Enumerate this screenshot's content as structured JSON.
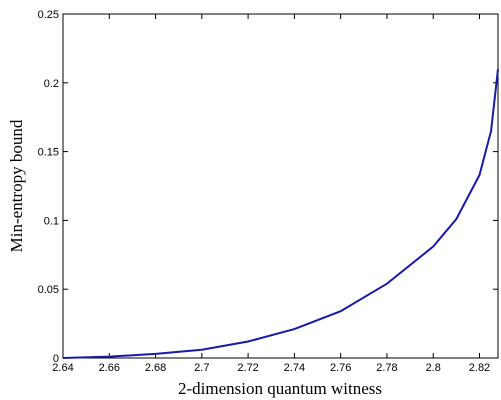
{
  "chart_data": {
    "type": "line",
    "title": "",
    "xlabel": "2-dimension quantum witness",
    "ylabel": "Min-entropy bound",
    "xlim": [
      2.64,
      2.828
    ],
    "ylim": [
      0,
      0.25
    ],
    "xticks": [
      "2.64",
      "2.66",
      "2.68",
      "2.7",
      "2.72",
      "2.74",
      "2.76",
      "2.78",
      "2.8",
      "2.82"
    ],
    "yticks": [
      "0",
      "0.05",
      "0.1",
      "0.15",
      "0.2",
      "0.25"
    ],
    "grid": false,
    "legend": "none",
    "series": [
      {
        "color": "#1a1aa6",
        "x": [
          2.64,
          2.66,
          2.68,
          2.7,
          2.72,
          2.74,
          2.76,
          2.78,
          2.8,
          2.81,
          2.82,
          2.825,
          2.828
        ],
        "y": [
          0.0,
          0.001,
          0.003,
          0.006,
          0.012,
          0.021,
          0.034,
          0.054,
          0.081,
          0.101,
          0.133,
          0.165,
          0.21
        ]
      }
    ]
  }
}
